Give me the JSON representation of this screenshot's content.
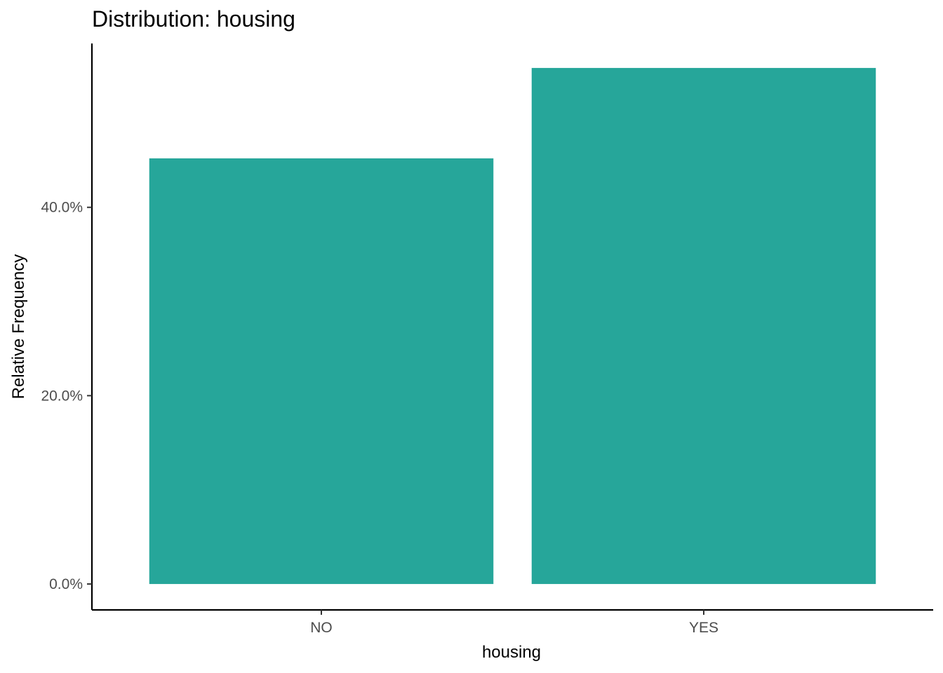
{
  "chart_data": {
    "type": "bar",
    "title": "Distribution: housing",
    "xlabel": "housing",
    "ylabel": "Relative Frequency",
    "categories": [
      "NO",
      "YES"
    ],
    "values": [
      45.2,
      54.8
    ],
    "value_unit": "percent",
    "ylim": [
      -2.75,
      57.4
    ],
    "yticks": [
      0,
      20,
      40
    ],
    "ytick_labels": [
      "0.0%",
      "20.0%",
      "40.0%"
    ],
    "grid": false,
    "legend": "none",
    "bar_color": "#26A69A",
    "axis_color": "#000000",
    "tick_label_color": "#4d4d4d"
  }
}
